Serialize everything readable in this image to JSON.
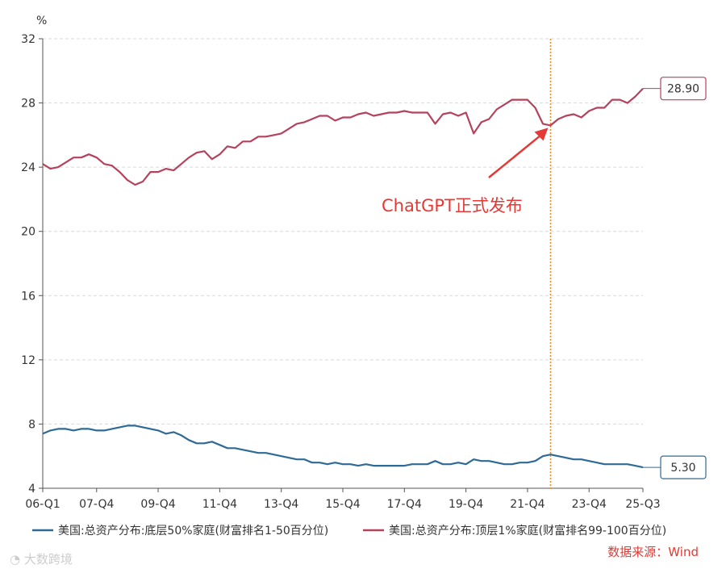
{
  "chart_data": {
    "type": "line",
    "y_unit": "%",
    "ylim": [
      4,
      32
    ],
    "y_ticks": [
      4,
      8,
      12,
      16,
      20,
      24,
      28,
      32
    ],
    "grid": "horizontal dashed",
    "x_tick_labels": [
      "06-Q1",
      "07-Q4",
      "09-Q4",
      "11-Q4",
      "13-Q4",
      "15-Q4",
      "17-Q4",
      "19-Q4",
      "21-Q4",
      "23-Q4",
      "25-Q3"
    ],
    "x_tick_index": [
      0,
      7,
      15,
      23,
      31,
      39,
      47,
      55,
      63,
      71,
      78
    ],
    "series": [
      {
        "name": "美国:总资产分布:底层50%家庭(财富排名1-50百分位)",
        "color": "#2e6a95",
        "values": [
          7.4,
          7.6,
          7.7,
          7.7,
          7.6,
          7.7,
          7.7,
          7.6,
          7.6,
          7.7,
          7.8,
          7.9,
          7.9,
          7.8,
          7.7,
          7.6,
          7.4,
          7.5,
          7.3,
          7.0,
          6.8,
          6.8,
          6.9,
          6.7,
          6.5,
          6.5,
          6.4,
          6.3,
          6.2,
          6.2,
          6.1,
          6.0,
          5.9,
          5.8,
          5.8,
          5.6,
          5.6,
          5.5,
          5.6,
          5.5,
          5.5,
          5.4,
          5.5,
          5.4,
          5.4,
          5.4,
          5.4,
          5.4,
          5.5,
          5.5,
          5.5,
          5.7,
          5.5,
          5.5,
          5.6,
          5.5,
          5.8,
          5.7,
          5.7,
          5.6,
          5.5,
          5.5,
          5.6,
          5.6,
          5.7,
          6.0,
          6.1,
          6.0,
          5.9,
          5.8,
          5.8,
          5.7,
          5.6,
          5.5,
          5.5,
          5.5,
          5.5,
          5.4,
          5.3
        ]
      },
      {
        "name": "美国:总资产分布:顶层1%家庭(财富排名99-100百分位)",
        "color": "#b5425d",
        "values": [
          24.2,
          23.9,
          24.0,
          24.3,
          24.6,
          24.6,
          24.8,
          24.6,
          24.2,
          24.1,
          23.7,
          23.2,
          22.9,
          23.1,
          23.7,
          23.7,
          23.9,
          23.8,
          24.2,
          24.6,
          24.9,
          25.0,
          24.5,
          24.8,
          25.3,
          25.2,
          25.6,
          25.6,
          25.9,
          25.9,
          26.0,
          26.1,
          26.4,
          26.7,
          26.8,
          27.0,
          27.2,
          27.2,
          26.9,
          27.1,
          27.1,
          27.3,
          27.4,
          27.2,
          27.3,
          27.4,
          27.4,
          27.5,
          27.4,
          27.4,
          27.4,
          26.7,
          27.3,
          27.4,
          27.2,
          27.4,
          26.1,
          26.8,
          27.0,
          27.6,
          27.9,
          28.2,
          28.2,
          28.2,
          27.7,
          26.7,
          26.6,
          27.0,
          27.2,
          27.3,
          27.1,
          27.5,
          27.7,
          27.7,
          28.2,
          28.2,
          28.0,
          28.4,
          28.9
        ]
      }
    ],
    "end_labels": [
      "5.30",
      "28.90"
    ],
    "event": {
      "index": 66,
      "label": "ChatGPT正式发布",
      "color": "#e53935",
      "line_color": "#f08a24"
    },
    "source": "数据来源：Wind"
  }
}
